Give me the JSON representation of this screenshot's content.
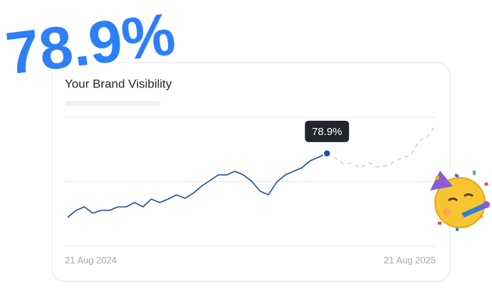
{
  "chart_data": {
    "type": "line",
    "headline": "78.9%",
    "title": "Your Brand Visibility",
    "categories": [
      "21 Aug 2024",
      null,
      null,
      null,
      null,
      null,
      null,
      null,
      null,
      null,
      null,
      null,
      null,
      null,
      null,
      null,
      null,
      null,
      null,
      null,
      null,
      null,
      null,
      null,
      null,
      null,
      null,
      null,
      null,
      null,
      null,
      null,
      null,
      null,
      null,
      null,
      null,
      null,
      null,
      null,
      null,
      null,
      null,
      null,
      "21 Aug 2025"
    ],
    "series": [
      {
        "color": "#1a4d9c",
        "dashed": false,
        "values": [
          41.6,
          45.7,
          47.8,
          44.1,
          45.7,
          45.7,
          47.8,
          47.8,
          50.3,
          47.8,
          52.3,
          50.3,
          52.3,
          54.8,
          52.8,
          55.7,
          59.8,
          63.1,
          66.4,
          66.4,
          68.5,
          66.4,
          62.7,
          56.9,
          54.8,
          62.3,
          66.4,
          68.5,
          70.6,
          74.7,
          76.8,
          78.9,
          null,
          null,
          null,
          null,
          null,
          null,
          null,
          null,
          null,
          null,
          null,
          null,
          null
        ],
        "value_labels": [
          null,
          null,
          null,
          null,
          null,
          null,
          null,
          null,
          null,
          null,
          null,
          null,
          null,
          null,
          null,
          null,
          null,
          null,
          null,
          null,
          null,
          null,
          null,
          null,
          null,
          null,
          null,
          null,
          null,
          null,
          null,
          "78.9%",
          null,
          null,
          null,
          null,
          null,
          null,
          null,
          null,
          null,
          null,
          null,
          null,
          null
        ]
      },
      {
        "color": "#d0d3d8",
        "dashed": true,
        "values": [
          null,
          null,
          null,
          null,
          null,
          null,
          null,
          null,
          null,
          null,
          null,
          null,
          null,
          null,
          null,
          null,
          null,
          null,
          null,
          null,
          null,
          null,
          null,
          null,
          null,
          null,
          null,
          null,
          null,
          null,
          null,
          78.9,
          76.4,
          72.7,
          73.1,
          70.6,
          73.5,
          71.0,
          71.8,
          73.9,
          76.4,
          78.0,
          86.3,
          88.8,
          95.4
        ]
      }
    ],
    "ylim": [
      25,
      100
    ],
    "yticks": [
      25,
      62.5,
      100
    ],
    "grid": true
  }
}
